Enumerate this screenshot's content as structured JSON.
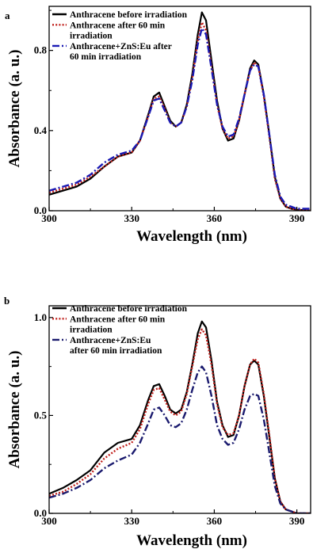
{
  "chart_data": [
    {
      "type": "line",
      "panel_label": "a",
      "title": "",
      "xlabel": "Wavelength (nm)",
      "ylabel": "Absorbance (a. u.)",
      "xlim": [
        300,
        395
      ],
      "ylim": [
        0,
        1.02
      ],
      "xticks": [
        300,
        330,
        360,
        390
      ],
      "yticks": [
        0.0,
        0.4,
        0.8
      ],
      "xtick_labels": [
        "300",
        "330",
        "360",
        "390"
      ],
      "ytick_labels": [
        "0.0",
        "0.4",
        "0.8"
      ],
      "legend_position": "top-left",
      "series": [
        {
          "name": "Anthracene before irradiation",
          "legend_lines": [
            "Anthracene before irradiation"
          ],
          "color": "#000000",
          "dash": "solid",
          "x": [
            300,
            305,
            310,
            315,
            320,
            325,
            330,
            333,
            336,
            338,
            340,
            342,
            344,
            346,
            348,
            350,
            352,
            354,
            355.5,
            357,
            359,
            361,
            363,
            365,
            367,
            369,
            371,
            373,
            374.5,
            376,
            378,
            380,
            382,
            384,
            386,
            388,
            390,
            395
          ],
          "y": [
            0.08,
            0.1,
            0.12,
            0.16,
            0.22,
            0.27,
            0.29,
            0.35,
            0.48,
            0.57,
            0.59,
            0.52,
            0.45,
            0.42,
            0.44,
            0.53,
            0.68,
            0.88,
            0.99,
            0.95,
            0.75,
            0.55,
            0.41,
            0.35,
            0.36,
            0.45,
            0.58,
            0.71,
            0.75,
            0.73,
            0.58,
            0.38,
            0.17,
            0.06,
            0.02,
            0.01,
            0.005,
            0.0
          ]
        },
        {
          "name": "Anthracene after 60 min irradiation",
          "legend_lines": [
            "Anthracene after 60 min",
            "irradiation"
          ],
          "color": "#c0201c",
          "dash": "dotted",
          "x": [
            300,
            305,
            310,
            315,
            320,
            325,
            330,
            333,
            336,
            338,
            340,
            342,
            344,
            346,
            348,
            350,
            352,
            354,
            355.5,
            357,
            359,
            361,
            363,
            365,
            367,
            369,
            371,
            373,
            374.5,
            376,
            378,
            380,
            382,
            384,
            386,
            388,
            390,
            395
          ],
          "y": [
            0.09,
            0.11,
            0.13,
            0.17,
            0.22,
            0.27,
            0.29,
            0.35,
            0.47,
            0.56,
            0.57,
            0.51,
            0.44,
            0.42,
            0.44,
            0.52,
            0.66,
            0.85,
            0.94,
            0.9,
            0.72,
            0.53,
            0.41,
            0.36,
            0.37,
            0.45,
            0.58,
            0.7,
            0.74,
            0.72,
            0.57,
            0.37,
            0.16,
            0.06,
            0.02,
            0.01,
            0.005,
            0.0
          ]
        },
        {
          "name": "Anthracene+ZnS:Eu after 60 min irradiation",
          "legend_lines": [
            "Anthracene+ZnS:Eu after",
            "60 min irradiation"
          ],
          "color": "#1a1ab4",
          "dash": "dashdot",
          "x": [
            300,
            305,
            310,
            315,
            320,
            325,
            330,
            333,
            336,
            338,
            340,
            342,
            344,
            346,
            348,
            350,
            352,
            354,
            355.5,
            357,
            359,
            361,
            363,
            365,
            367,
            369,
            371,
            373,
            374.5,
            376,
            378,
            380,
            382,
            384,
            386,
            388,
            390,
            395
          ],
          "y": [
            0.1,
            0.12,
            0.14,
            0.18,
            0.24,
            0.28,
            0.3,
            0.35,
            0.47,
            0.55,
            0.56,
            0.5,
            0.44,
            0.42,
            0.44,
            0.52,
            0.65,
            0.83,
            0.91,
            0.88,
            0.71,
            0.53,
            0.42,
            0.37,
            0.38,
            0.46,
            0.58,
            0.7,
            0.73,
            0.72,
            0.58,
            0.38,
            0.18,
            0.07,
            0.03,
            0.02,
            0.01,
            0.01
          ]
        }
      ]
    },
    {
      "type": "line",
      "panel_label": "b",
      "title": "",
      "xlabel": "Wavelength (nm)",
      "ylabel": "Absorbance (a. u.)",
      "xlim": [
        300,
        395
      ],
      "ylim": [
        0,
        1.06
      ],
      "xticks": [
        300,
        330,
        360,
        390
      ],
      "yticks": [
        0.0,
        0.5,
        1.0
      ],
      "xtick_labels": [
        "300",
        "330",
        "360",
        "390"
      ],
      "ytick_labels": [
        "0.0",
        "0.5",
        "1.0"
      ],
      "legend_position": "top-left",
      "series": [
        {
          "name": "Anthracene before irradiation",
          "legend_lines": [
            "Anthracene before irradiation"
          ],
          "color": "#000000",
          "dash": "solid",
          "x": [
            300,
            305,
            310,
            315,
            320,
            325,
            330,
            333,
            336,
            338,
            340,
            342,
            344,
            346,
            348,
            350,
            352,
            354,
            355.5,
            357,
            359,
            361,
            363,
            365,
            367,
            369,
            371,
            373,
            374.5,
            376,
            378,
            380,
            382,
            384,
            386,
            388,
            390,
            395
          ],
          "y": [
            0.1,
            0.13,
            0.17,
            0.22,
            0.31,
            0.36,
            0.38,
            0.45,
            0.58,
            0.65,
            0.66,
            0.6,
            0.53,
            0.51,
            0.53,
            0.62,
            0.76,
            0.92,
            0.98,
            0.95,
            0.78,
            0.57,
            0.45,
            0.39,
            0.4,
            0.5,
            0.65,
            0.76,
            0.78,
            0.76,
            0.6,
            0.39,
            0.18,
            0.06,
            0.02,
            0.01,
            0.0,
            0.0
          ]
        },
        {
          "name": "Anthracene after 60 min irradiation",
          "legend_lines": [
            "Anthracene after 60 min",
            "irradiation"
          ],
          "color": "#c0201c",
          "dash": "dotted",
          "x": [
            300,
            305,
            310,
            315,
            320,
            325,
            330,
            333,
            336,
            338,
            340,
            342,
            344,
            346,
            348,
            350,
            352,
            354,
            355.5,
            357,
            359,
            361,
            363,
            365,
            367,
            369,
            371,
            373,
            374.5,
            376,
            378,
            380,
            382,
            384,
            386,
            388,
            390,
            395
          ],
          "y": [
            0.09,
            0.11,
            0.15,
            0.2,
            0.28,
            0.33,
            0.36,
            0.43,
            0.56,
            0.63,
            0.64,
            0.58,
            0.52,
            0.5,
            0.52,
            0.61,
            0.75,
            0.89,
            0.94,
            0.91,
            0.76,
            0.56,
            0.44,
            0.4,
            0.41,
            0.5,
            0.65,
            0.76,
            0.79,
            0.77,
            0.61,
            0.4,
            0.18,
            0.06,
            0.02,
            0.01,
            0.0,
            0.0
          ]
        },
        {
          "name": "Anthracene+ZnS:Eu after 60 min irradiation",
          "legend_lines": [
            "Anthracene+ZnS:Eu",
            "after  60 min irradiation"
          ],
          "color": "#1a1a6e",
          "dash": "dashdot",
          "x": [
            300,
            305,
            310,
            315,
            320,
            325,
            330,
            333,
            336,
            338,
            340,
            342,
            344,
            346,
            348,
            350,
            352,
            354,
            355.5,
            357,
            359,
            361,
            363,
            365,
            367,
            369,
            371,
            373,
            374.5,
            376,
            378,
            380,
            382,
            384,
            386,
            388,
            390,
            395
          ],
          "y": [
            0.08,
            0.1,
            0.13,
            0.17,
            0.23,
            0.27,
            0.3,
            0.36,
            0.46,
            0.53,
            0.54,
            0.5,
            0.45,
            0.44,
            0.46,
            0.53,
            0.63,
            0.72,
            0.75,
            0.72,
            0.6,
            0.45,
            0.38,
            0.35,
            0.36,
            0.43,
            0.53,
            0.6,
            0.61,
            0.6,
            0.48,
            0.31,
            0.14,
            0.05,
            0.02,
            0.01,
            0.0,
            0.0
          ]
        }
      ]
    }
  ]
}
